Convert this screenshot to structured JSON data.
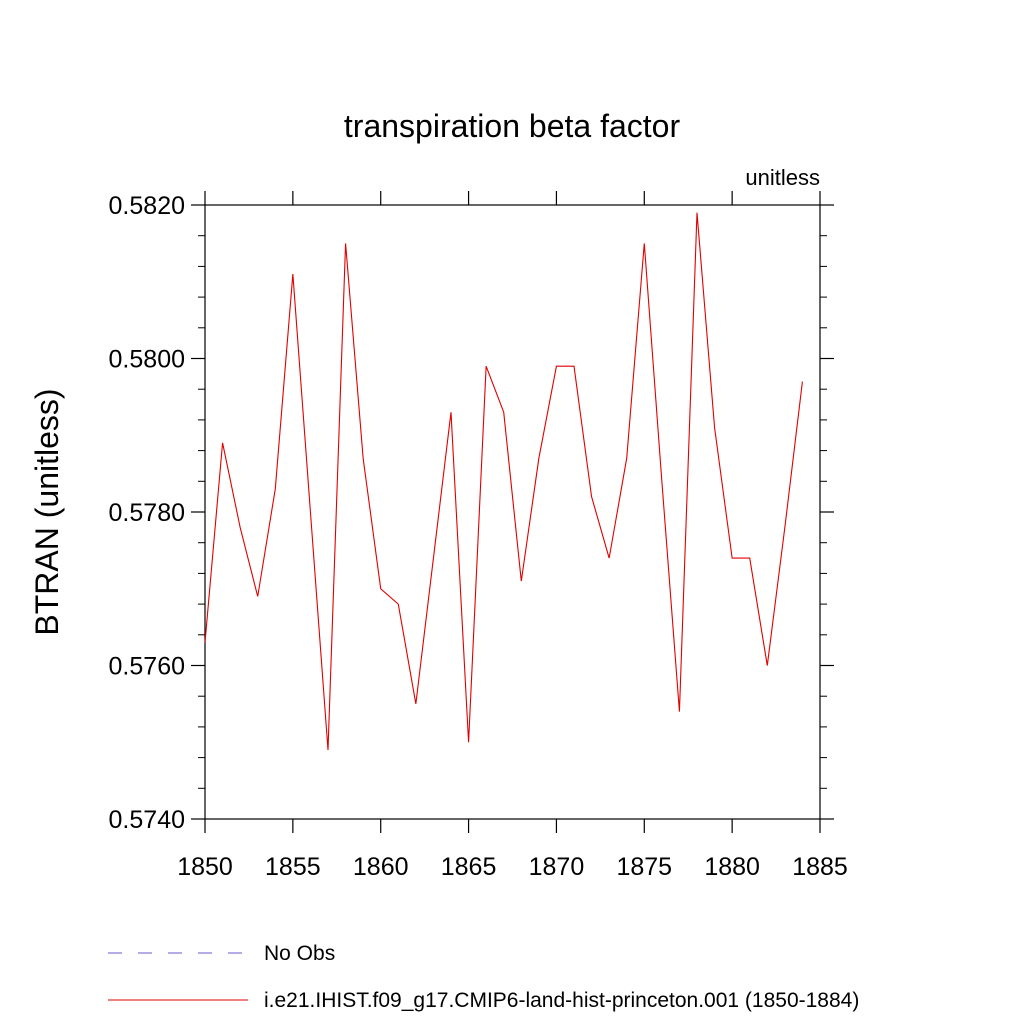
{
  "chart_data": {
    "type": "line",
    "title": "transpiration beta factor",
    "units_label": "unitless",
    "ylabel": "BTRAN  (unitless)",
    "xlabel": "",
    "xlim": [
      1850,
      1885
    ],
    "ylim": [
      0.574,
      0.582
    ],
    "x_ticks": [
      1850,
      1855,
      1860,
      1865,
      1870,
      1875,
      1880,
      1885
    ],
    "x_tick_labels": [
      "1850",
      "1855",
      "1860",
      "1865",
      "1870",
      "1875",
      "1880",
      "1885"
    ],
    "y_ticks": [
      0.574,
      0.576,
      0.578,
      0.58,
      0.582
    ],
    "y_tick_labels": [
      "0.5740",
      "0.5760",
      "0.5780",
      "0.5800",
      "0.5820"
    ],
    "grid": false,
    "legend_position": "bottom",
    "legend": [
      {
        "label": "No Obs",
        "color": "#6a5acd",
        "dash": "dashed"
      },
      {
        "label": "i.e21.IHIST.f09_g17.CMIP6-land-hist-princeton.001 (1850-1884)",
        "color": "#e00000",
        "dash": "solid"
      }
    ],
    "series": [
      {
        "color": "#e00000",
        "x": [
          1850,
          1851,
          1852,
          1853,
          1854,
          1855,
          1856,
          1857,
          1858,
          1859,
          1860,
          1861,
          1862,
          1863,
          1864,
          1865,
          1866,
          1867,
          1868,
          1869,
          1870,
          1871,
          1872,
          1873,
          1874,
          1875,
          1876,
          1877,
          1878,
          1879,
          1880,
          1881,
          1882,
          1883,
          1884
        ],
        "values": [
          0.5763,
          0.5789,
          0.5778,
          0.5769,
          0.5783,
          0.5811,
          0.578,
          0.5749,
          0.5815,
          0.5787,
          0.577,
          0.5768,
          0.5755,
          0.5774,
          0.5793,
          0.575,
          0.5799,
          0.5793,
          0.5771,
          0.5787,
          0.5799,
          0.5799,
          0.5782,
          0.5774,
          0.5787,
          0.5815,
          0.5784,
          0.5754,
          0.5819,
          0.5791,
          0.5774,
          0.5774,
          0.576,
          0.5778,
          0.5797
        ]
      }
    ]
  }
}
